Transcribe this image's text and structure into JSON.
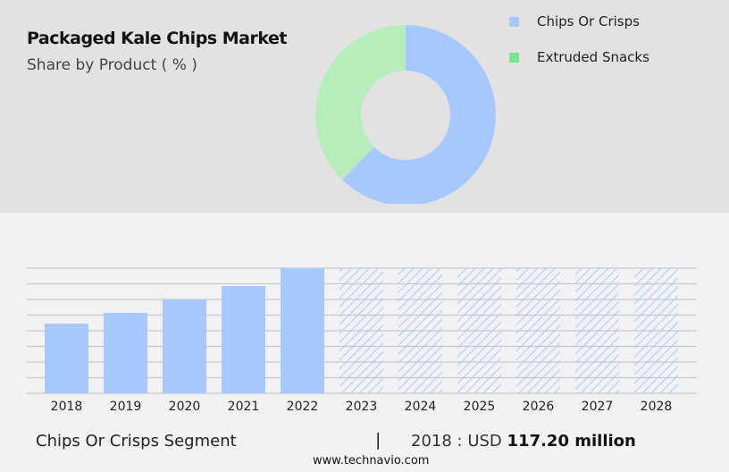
{
  "header": {
    "title": "Packaged Kale Chips Market",
    "subtitle": "Share by Product ( % )"
  },
  "chart_data": [
    {
      "type": "pie",
      "variant": "donut",
      "title": "Packaged Kale Chips Market",
      "subtitle": "Share by Product ( % )",
      "categories": [
        "Chips Or Crisps",
        "Extruded Snacks"
      ],
      "values": [
        62.4,
        37.6
      ],
      "colors": [
        "#a7c8fd",
        "#b5edbb"
      ],
      "legend_colors": [
        "#a7c8fd",
        "#77e393"
      ],
      "legend": "top-right"
    },
    {
      "type": "bar",
      "categories": [
        "2018",
        "2019",
        "2020",
        "2021",
        "2022",
        "2023",
        "2024",
        "2025",
        "2026",
        "2027",
        "2028"
      ],
      "values": [
        117.2,
        135.2,
        157.7,
        180.3,
        210.4,
        null,
        null,
        null,
        null,
        null,
        null
      ],
      "forecast_years": [
        "2023",
        "2024",
        "2025",
        "2026",
        "2027",
        "2028"
      ],
      "ylim": [
        0,
        210.4
      ],
      "grid": true,
      "color": "#a7c8fd"
    }
  ],
  "footer": {
    "segment": "Chips Or Crisps Segment",
    "separator": "|",
    "value_prefix": "2018 : USD",
    "value": "117.20 million",
    "site": "www.technavio.com"
  }
}
